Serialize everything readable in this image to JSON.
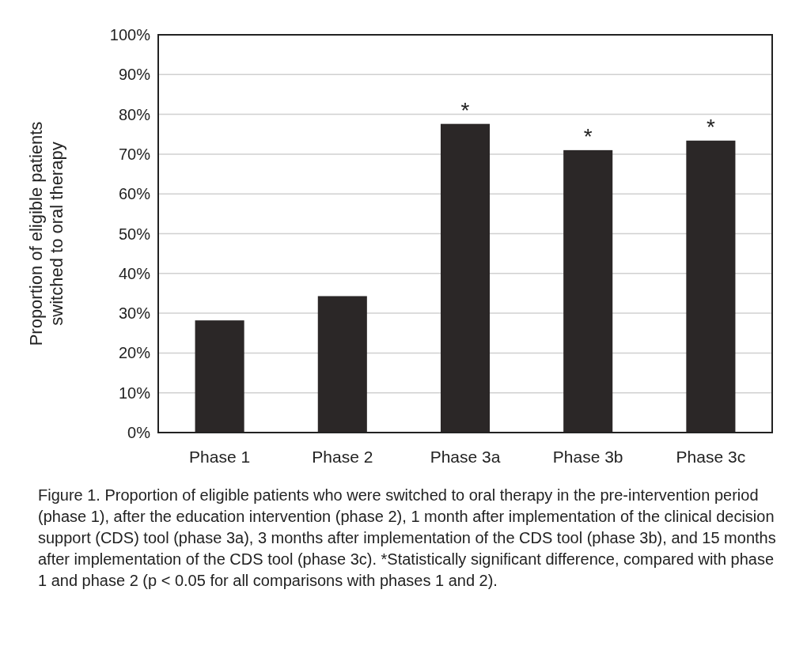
{
  "chart_data": {
    "type": "bar",
    "ylabel": "Proportion of eligible patients\nswitched to oral therapy",
    "categories": [
      "Phase 1",
      "Phase 2",
      "Phase 3a",
      "Phase 3b",
      "Phase 3c"
    ],
    "values": [
      28.2,
      34.3,
      77.6,
      71.0,
      73.4
    ],
    "color": "#2b2727",
    "ylim": [
      0,
      100
    ],
    "yticks": [
      {
        "value": 0,
        "label": "0%"
      },
      {
        "value": 10,
        "label": "10%"
      },
      {
        "value": 20,
        "label": "20%"
      },
      {
        "value": 30,
        "label": "30%"
      },
      {
        "value": 40,
        "label": "40%"
      },
      {
        "value": 50,
        "label": "50%"
      },
      {
        "value": 60,
        "label": "60%"
      },
      {
        "value": 70,
        "label": "70%"
      },
      {
        "value": 80,
        "label": "80%"
      },
      {
        "value": 90,
        "label": "90%"
      },
      {
        "value": 100,
        "label": "100%"
      }
    ],
    "grid": "y",
    "annotations": [
      {
        "text": "*",
        "x": "Phase 3a",
        "y": 77.6
      },
      {
        "text": "*",
        "x": "Phase 3b",
        "y": 71.0
      },
      {
        "text": "*",
        "x": "Phase 3c",
        "y": 73.4
      },
      "Figure 1.  Proportion of eligible patients who were switched to oral therapy in the pre-intervention period (phase 1), after the education intervention (phase 2), 1 month after implementation of the clinical decision support (CDS) tool (phase 3a), 3 months after implementation of the CDS tool (phase 3b), and 15 months after implementation of the CDS tool (phase 3c). *Statistically significant difference, compared with phase 1 and phase 2 (p < 0.05 for all comparisons with phases 1 and 2)."
    ]
  }
}
